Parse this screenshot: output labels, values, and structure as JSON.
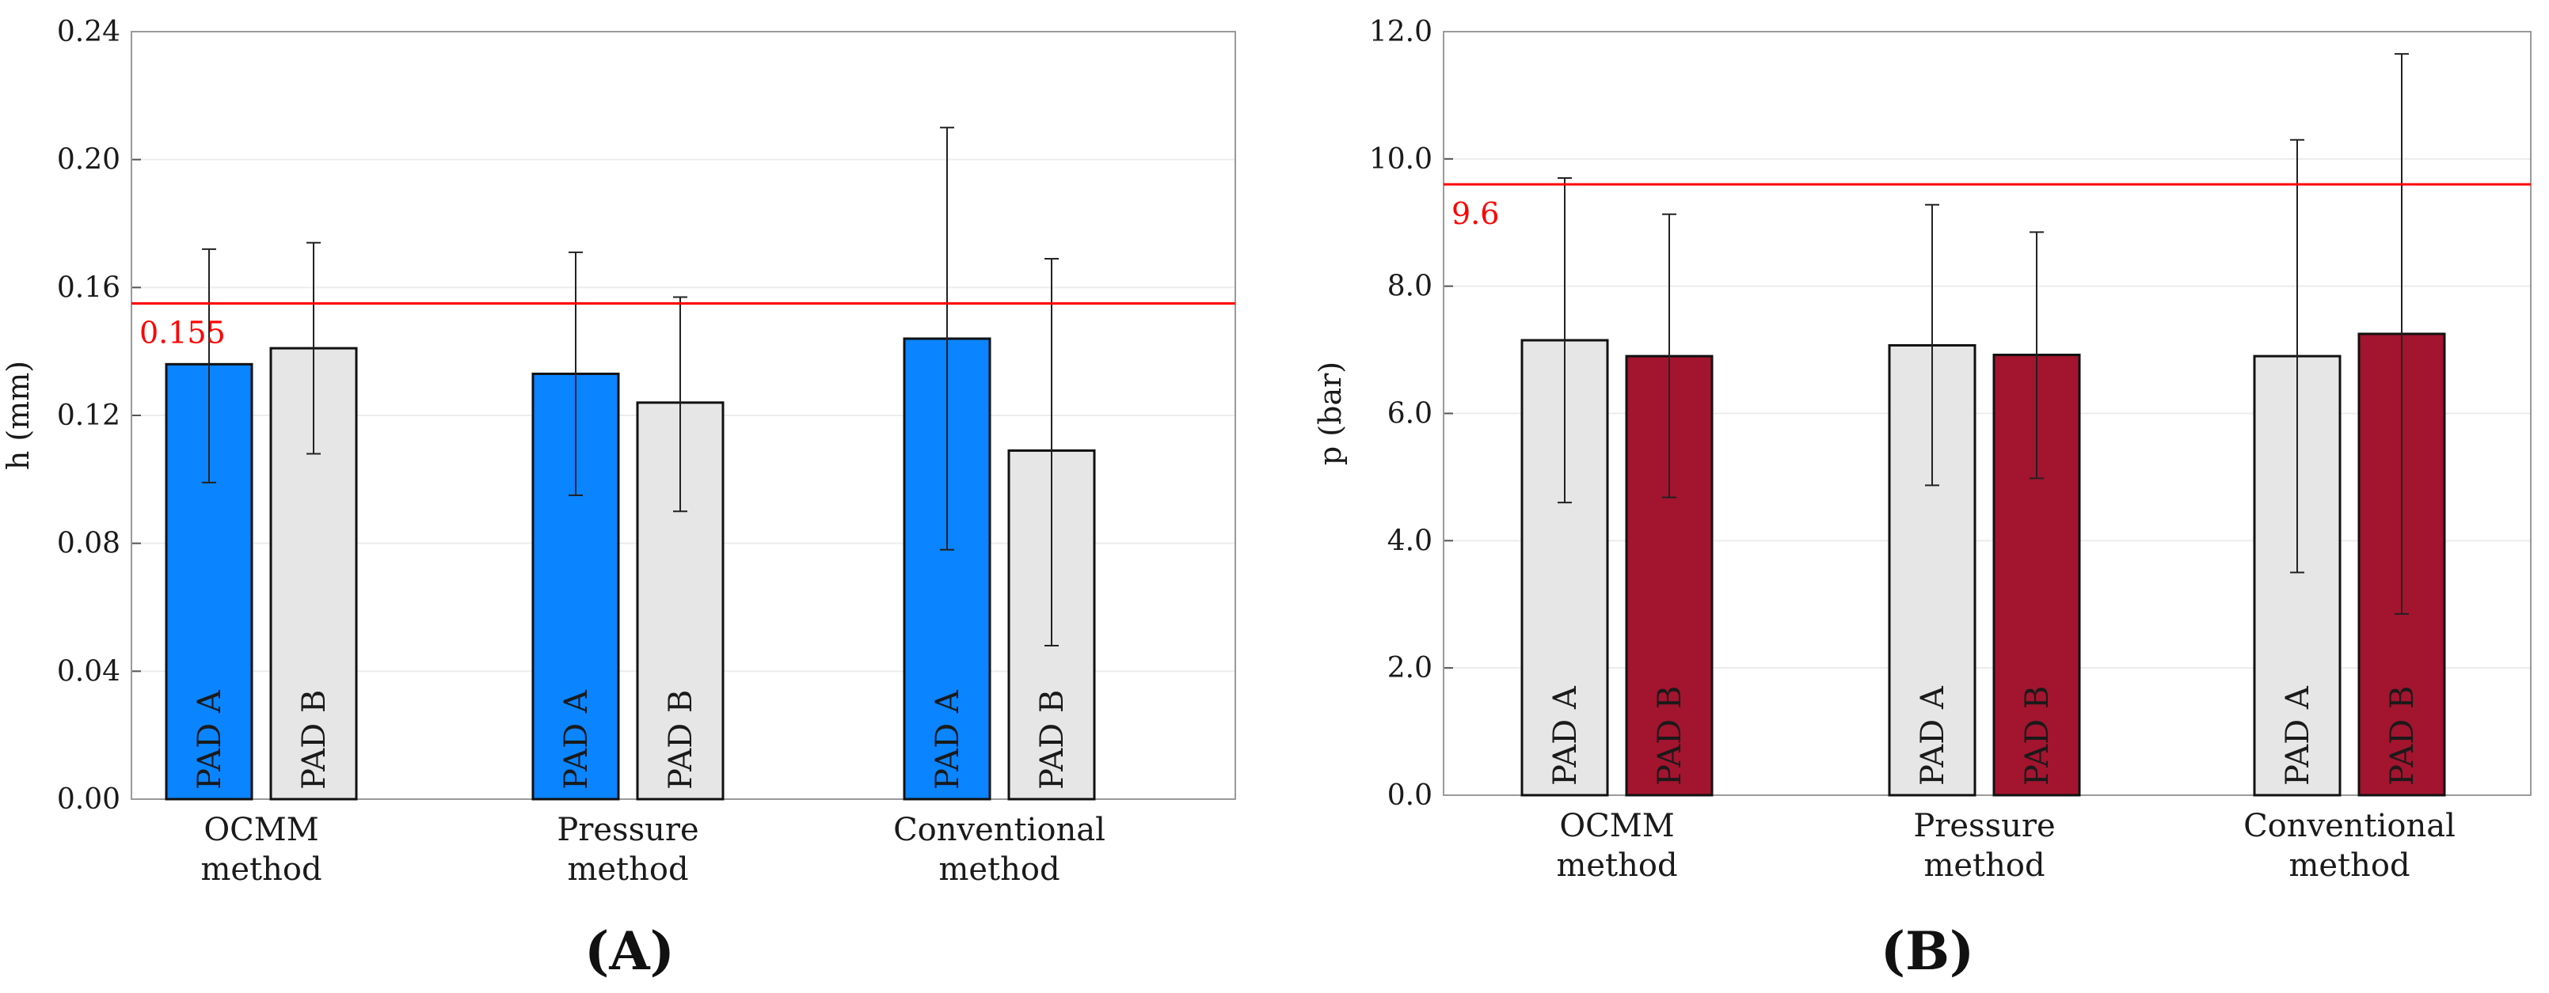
{
  "chart_data": [
    {
      "type": "bar",
      "panel_label": "(A)",
      "ylabel": "h (mm)",
      "xlabel": "",
      "ylim": [
        0,
        0.24
      ],
      "yticks": [
        "0.00",
        "0.04",
        "0.08",
        "0.12",
        "0.16",
        "0.20",
        "0.24"
      ],
      "grid": true,
      "categories": [
        {
          "line1": "OCMM",
          "line2": "method"
        },
        {
          "line1": "Pressure",
          "line2": "method"
        },
        {
          "line1": "Conventional",
          "line2": "method"
        }
      ],
      "series": [
        {
          "name": "PAD A",
          "label": "PAD A",
          "color": "#0a84ff",
          "values": [
            0.136,
            0.133,
            0.144
          ],
          "err_low": [
            0.099,
            0.095,
            0.078
          ],
          "err_high": [
            0.172,
            0.171,
            0.21
          ]
        },
        {
          "name": "PAD B",
          "label": "PAD B",
          "color": "#e6e6e6",
          "values": [
            0.141,
            0.124,
            0.109
          ],
          "err_low": [
            0.108,
            0.09,
            0.048
          ],
          "err_high": [
            0.174,
            0.157,
            0.169
          ]
        }
      ],
      "reference_line": {
        "value": 0.155,
        "label": "0.155",
        "color": "#ff0000"
      }
    },
    {
      "type": "bar",
      "panel_label": "(B)",
      "ylabel": "p (bar)",
      "xlabel": "",
      "ylim": [
        0,
        12
      ],
      "yticks": [
        "0.0",
        "2.0",
        "4.0",
        "6.0",
        "8.0",
        "10.0",
        "12.0"
      ],
      "grid": true,
      "categories": [
        {
          "line1": "OCMM",
          "line2": "method"
        },
        {
          "line1": "Pressure",
          "line2": "method"
        },
        {
          "line1": "Conventional",
          "line2": "method"
        }
      ],
      "series": [
        {
          "name": "PAD A",
          "label": "PAD A",
          "color": "#e6e6e6",
          "values": [
            7.15,
            7.07,
            6.9
          ],
          "err_low": [
            4.6,
            4.87,
            3.5
          ],
          "err_high": [
            9.7,
            9.28,
            10.3
          ]
        },
        {
          "name": "PAD B",
          "label": "PAD B",
          "color": "#a3142f",
          "values": [
            6.9,
            6.92,
            7.25
          ],
          "err_low": [
            4.68,
            4.98,
            2.85
          ],
          "err_high": [
            9.13,
            8.85,
            11.65
          ]
        }
      ],
      "reference_line": {
        "value": 9.6,
        "label": "9.6",
        "color": "#ff0000"
      }
    }
  ]
}
